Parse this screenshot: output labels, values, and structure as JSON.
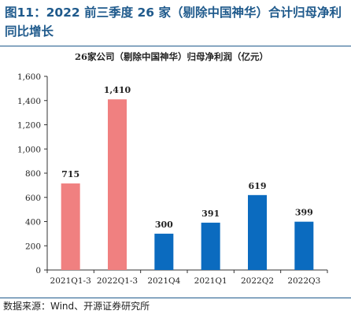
{
  "figure": {
    "title": "图11：2022 前三季度 26 家（剔除中国神华）合计归母净利同比增长",
    "source": "数据来源：Wind、开源证券研究所"
  },
  "chart_data": {
    "type": "bar",
    "title": "26家公司（剔除中国神华）归母净利润（亿元）",
    "categories": [
      "2021Q1-3",
      "2022Q1-3",
      "2021Q4",
      "2021Q1",
      "2022Q2",
      "2022Q3"
    ],
    "values": [
      715,
      1410,
      300,
      391,
      619,
      399
    ],
    "data_labels": [
      "715",
      "1,410",
      "300",
      "391",
      "619",
      "399"
    ],
    "colors": [
      "#f08080",
      "#f08080",
      "#0b6bbf",
      "#0b6bbf",
      "#0b6bbf",
      "#0b6bbf"
    ],
    "ylim": [
      0,
      1600
    ],
    "yticks": [
      0,
      200,
      400,
      600,
      800,
      1000,
      1200,
      1400,
      1600
    ],
    "ytick_labels": [
      "0",
      "200",
      "400",
      "600",
      "800",
      "1,000",
      "1,200",
      "1,400",
      "1,600"
    ],
    "grid": false,
    "legend": "none"
  }
}
